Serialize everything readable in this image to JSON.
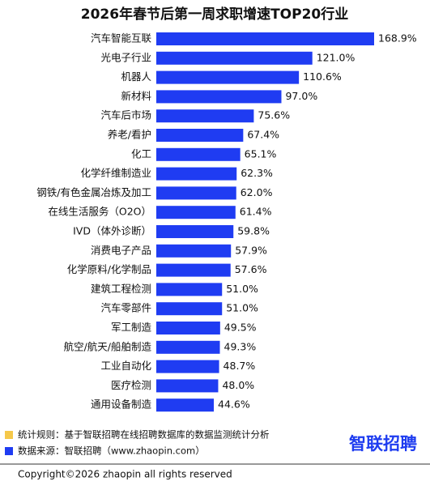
{
  "chart_data": {
    "type": "bar",
    "orientation": "horizontal",
    "title": "2026年春节后第一周求职增速TOP20行业",
    "categories": [
      "汽车智能互联",
      "光电子行业",
      "机器人",
      "新材料",
      "汽车后市场",
      "养老/看护",
      "化工",
      "化学纤维制造业",
      "钢铁/有色金属冶炼及加工",
      "在线生活服务（O2O）",
      "IVD（体外诊断）",
      "消费电子产品",
      "化学原料/化学制品",
      "建筑工程检测",
      "汽车零部件",
      "军工制造",
      "航空/航天/船舶制造",
      "工业自动化",
      "医疗检测",
      "通用设备制造"
    ],
    "values": [
      168.9,
      121.0,
      110.6,
      97.0,
      75.6,
      67.4,
      65.1,
      62.3,
      62.0,
      61.4,
      59.8,
      57.9,
      57.6,
      51.0,
      51.0,
      49.5,
      49.3,
      48.7,
      48.0,
      44.6
    ],
    "value_labels": [
      "168.9%",
      "121.0%",
      "110.6%",
      "97.0%",
      "75.6%",
      "67.4%",
      "65.1%",
      "62.3%",
      "62.0%",
      "61.4%",
      "59.8%",
      "57.9%",
      "57.6%",
      "51.0%",
      "51.0%",
      "49.5%",
      "49.3%",
      "48.7%",
      "48.0%",
      "44.6%"
    ],
    "color": "#1f3cf2"
  },
  "notes": [
    {
      "text": "统计规则：基于智联招聘在线招聘数据库的数据监测统计分析",
      "color": "#f5c84a"
    },
    {
      "text": "数据来源：智联招聘（www.zhaopin.com）",
      "color": "#1f3cf2"
    }
  ],
  "logo": "智联招聘",
  "copyright": "Copyright©2026 zhaopin all rights reserved"
}
